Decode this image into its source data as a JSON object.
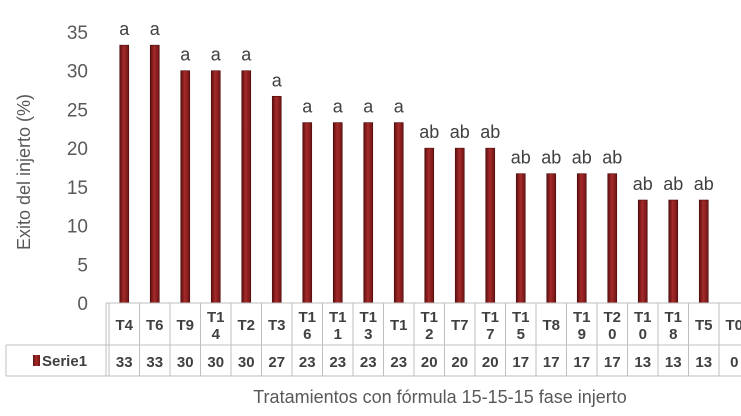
{
  "chart_data": {
    "type": "bar",
    "title": "",
    "xlabel": "Tratamientos con fórmula 15-15-15 fase injerto",
    "ylabel": "Exito del injerto (%)",
    "ylim": [
      0,
      35
    ],
    "yticks": [
      0,
      5,
      10,
      15,
      20,
      25,
      30,
      35
    ],
    "grid": false,
    "legend": "data-table",
    "bar_color": "#8B1A1A",
    "categories": [
      "T4",
      "T6",
      "T9",
      "T14",
      "T2",
      "T3",
      "T16",
      "T11",
      "T13",
      "T1",
      "T12",
      "T7",
      "T17",
      "T15",
      "T8",
      "T19",
      "T20",
      "T10",
      "T18",
      "T5",
      "T0"
    ],
    "category_labels": [
      [
        "T4"
      ],
      [
        "T6"
      ],
      [
        "T9"
      ],
      [
        "T1",
        "4"
      ],
      [
        "T2"
      ],
      [
        "T3"
      ],
      [
        "T1",
        "6"
      ],
      [
        "T1",
        "1"
      ],
      [
        "T1",
        "3"
      ],
      [
        "T1"
      ],
      [
        "T1",
        "2"
      ],
      [
        "T7"
      ],
      [
        "T1",
        "7"
      ],
      [
        "T1",
        "5"
      ],
      [
        "T8"
      ],
      [
        "T1",
        "9"
      ],
      [
        "T2",
        "0"
      ],
      [
        "T1",
        "0"
      ],
      [
        "T1",
        "8"
      ],
      [
        "T5"
      ],
      [
        "T0"
      ]
    ],
    "series": [
      {
        "name": "Serie1",
        "values": [
          33.3,
          33.3,
          30,
          30,
          30,
          26.7,
          23.3,
          23.3,
          23.3,
          23.3,
          20,
          20,
          20,
          16.7,
          16.7,
          16.7,
          16.7,
          13.3,
          13.3,
          13.3,
          0
        ],
        "table_values": [
          "33",
          "33",
          "30",
          "30",
          "30",
          "27",
          "23",
          "23",
          "23",
          "23",
          "20",
          "20",
          "20",
          "17",
          "17",
          "17",
          "17",
          "13",
          "13",
          "13",
          "0"
        ]
      }
    ],
    "annotations": [
      "a",
      "a",
      "a",
      "a",
      "a",
      "a",
      "a",
      "a",
      "a",
      "a",
      "ab",
      "ab",
      "ab",
      "ab",
      "ab",
      "ab",
      "ab",
      "ab",
      "ab",
      "ab",
      ""
    ]
  }
}
